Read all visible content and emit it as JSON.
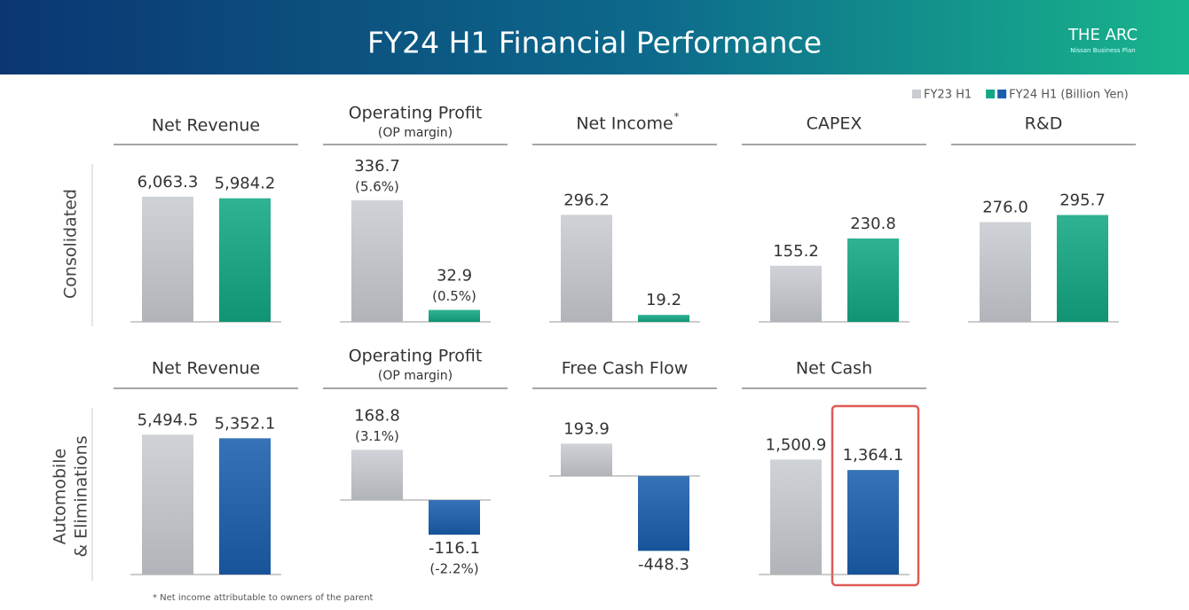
{
  "header": {
    "title": "FY24 H1 Financial Performance",
    "logo": "THE ARC",
    "logo_subtitle": "Nissan Business Plan"
  },
  "legend": [
    {
      "name": "FY23 H1",
      "colors": [
        "#c9ccd2"
      ]
    },
    {
      "name": "FY24 H1 (Billion Yen)",
      "colors": [
        "#12a883",
        "#1a5fae"
      ]
    }
  ],
  "row_labels": [
    [
      "Consolidated"
    ],
    [
      "Automobile",
      "& Eliminations"
    ]
  ],
  "footnote": "* Net income attributable to owners of the parent",
  "chart_data": [
    {
      "type": "bar",
      "title": "Net Revenue",
      "values": [
        6063.3,
        5984.2
      ],
      "value_labels": [
        "6,063.3",
        "5,984.2"
      ],
      "colors": [
        "#c9ccd2",
        "#12a883"
      ],
      "ylim": [
        0,
        7000
      ]
    },
    {
      "type": "bar",
      "title": "Operating Profit",
      "subtitle": "(OP margin)",
      "values": [
        336.7,
        32.9
      ],
      "margin_labels": [
        "(5.6%)",
        "(0.5%)"
      ],
      "colors": [
        "#c9ccd2",
        "#12a883"
      ],
      "ylim": [
        0,
        400
      ]
    },
    {
      "type": "bar",
      "title": "Net Income",
      "title_note": "*",
      "values": [
        296.2,
        19.2
      ],
      "colors": [
        "#c9ccd2",
        "#12a883"
      ],
      "ylim": [
        0,
        400
      ]
    },
    {
      "type": "bar",
      "title": "CAPEX",
      "values": [
        155.2,
        230.8
      ],
      "colors": [
        "#c9ccd2",
        "#12a883"
      ],
      "ylim": [
        0,
        400
      ]
    },
    {
      "type": "bar",
      "title": "R&D",
      "values": [
        276.0,
        295.7
      ],
      "value_labels": [
        "276.0",
        "295.7"
      ],
      "colors": [
        "#c9ccd2",
        "#12a883"
      ],
      "ylim": [
        0,
        400
      ]
    },
    {
      "type": "bar",
      "title": "Net Revenue",
      "values": [
        5494.5,
        5352.1
      ],
      "value_labels": [
        "5,494.5",
        "5,352.1"
      ],
      "colors": [
        "#c9ccd2",
        "#1a5fae"
      ],
      "ylim": [
        0,
        6200
      ]
    },
    {
      "type": "bar",
      "title": "Operating Profit",
      "subtitle": "(OP margin)",
      "values": [
        168.8,
        -116.1
      ],
      "margin_labels": [
        "(3.1%)",
        "(-2.2%)"
      ],
      "colors": [
        "#c9ccd2",
        "#1a5fae"
      ],
      "ylim": [
        -250,
        280
      ]
    },
    {
      "type": "bar",
      "title": "Free Cash Flow",
      "values": [
        193.9,
        -448.3
      ],
      "colors": [
        "#c9ccd2",
        "#1a5fae"
      ],
      "ylim": [
        -590,
        355
      ]
    },
    {
      "type": "bar",
      "title": "Net Cash",
      "values": [
        1500.9,
        1364.1
      ],
      "value_labels": [
        "1,500.9",
        "1,364.1"
      ],
      "colors": [
        "#c9ccd2",
        "#1a5fae"
      ],
      "ylim": [
        0,
        2060
      ]
    }
  ]
}
